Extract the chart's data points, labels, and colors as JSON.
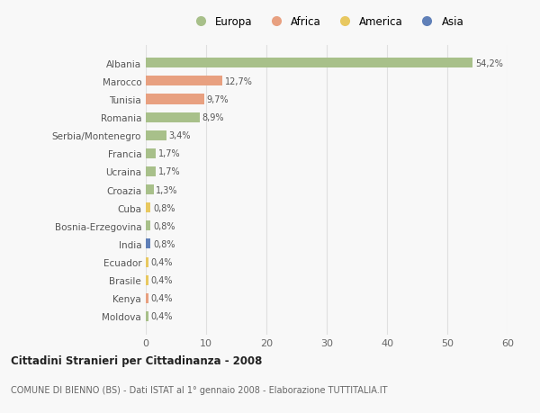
{
  "countries": [
    "Albania",
    "Marocco",
    "Tunisia",
    "Romania",
    "Serbia/Montenegro",
    "Francia",
    "Ucraina",
    "Croazia",
    "Cuba",
    "Bosnia-Erzegovina",
    "India",
    "Ecuador",
    "Brasile",
    "Kenya",
    "Moldova"
  ],
  "values": [
    54.2,
    12.7,
    9.7,
    8.9,
    3.4,
    1.7,
    1.7,
    1.3,
    0.8,
    0.8,
    0.8,
    0.4,
    0.4,
    0.4,
    0.4
  ],
  "labels": [
    "54,2%",
    "12,7%",
    "9,7%",
    "8,9%",
    "3,4%",
    "1,7%",
    "1,7%",
    "1,3%",
    "0,8%",
    "0,8%",
    "0,8%",
    "0,4%",
    "0,4%",
    "0,4%",
    "0,4%"
  ],
  "continents": [
    "Europa",
    "Africa",
    "Africa",
    "Europa",
    "Europa",
    "Europa",
    "Europa",
    "Europa",
    "America",
    "Europa",
    "Asia",
    "America",
    "America",
    "Africa",
    "Europa"
  ],
  "colors": {
    "Europa": "#a8c08a",
    "Africa": "#e8a080",
    "America": "#e8c860",
    "Asia": "#6080b8"
  },
  "legend_order": [
    "Europa",
    "Africa",
    "America",
    "Asia"
  ],
  "xlim": [
    0,
    60
  ],
  "xticks": [
    0,
    10,
    20,
    30,
    40,
    50,
    60
  ],
  "title": "Cittadini Stranieri per Cittadinanza - 2008",
  "subtitle": "COMUNE DI BIENNO (BS) - Dati ISTAT al 1° gennaio 2008 - Elaborazione TUTTITALIA.IT",
  "background_color": "#f8f8f8",
  "grid_color": "#e0e0e0"
}
